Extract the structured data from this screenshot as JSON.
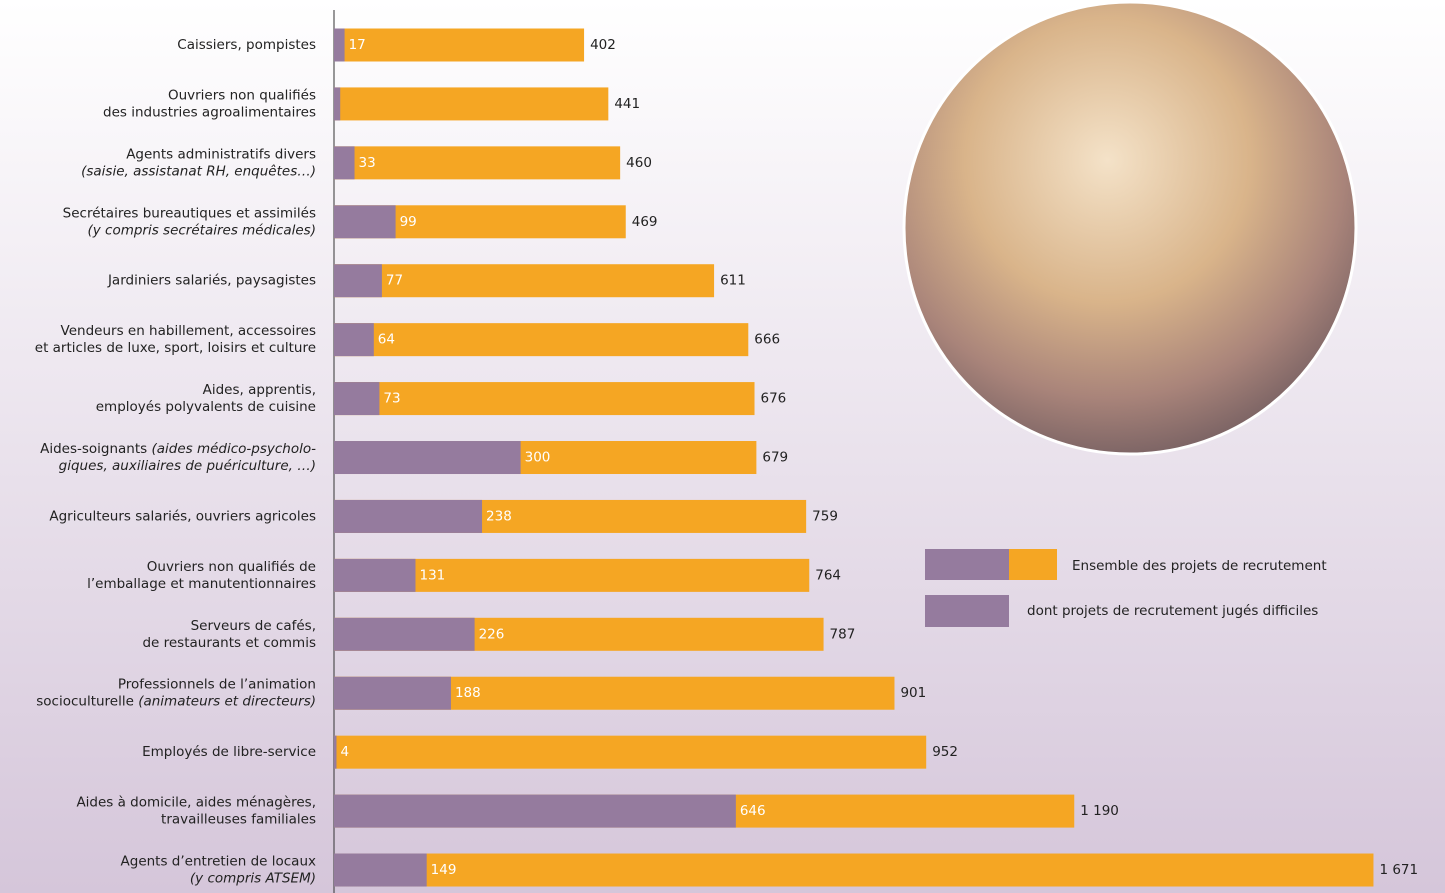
{
  "chart_data": {
    "type": "overlap-bar",
    "categories": [
      [
        [
          "Caissiers, pompistes"
        ]
      ],
      [
        [
          "Ouvriers non qualifiés"
        ],
        [
          "des industries agroalimentaires"
        ]
      ],
      [
        [
          "Agents administratifs divers"
        ],
        [
          "(saisie, assistanat RH, enquêtes…)"
        ]
      ],
      [
        [
          "Secrétaires bureautiques et assimilés"
        ],
        [
          "(y compris secrétaires médicales)"
        ]
      ],
      [
        [
          "Jardiniers salariés, paysagistes"
        ]
      ],
      [
        [
          "Vendeurs en habillement, accessoires"
        ],
        [
          "et articles de luxe, sport, loisirs et culture"
        ]
      ],
      [
        [
          "Aides, apprentis,"
        ],
        [
          "employés polyvalents de cuisine"
        ]
      ],
      [
        [
          "Aides-soignants ",
          "(aides médico-psycholo-"
        ],
        [
          "giques, auxiliaires de puériculture, …)"
        ]
      ],
      [
        [
          "Agriculteurs salariés, ouvriers agricoles"
        ]
      ],
      [
        [
          "Ouvriers non qualifiés de"
        ],
        [
          "l’emballage et manutentionnaires"
        ]
      ],
      [
        [
          "Serveurs de cafés,"
        ],
        [
          "de restaurants et commis"
        ]
      ],
      [
        [
          "Professionnels de l’animation"
        ],
        [
          "socioculturelle ",
          "(animateurs et directeurs)"
        ]
      ],
      [
        [
          "Employés de libre-service"
        ]
      ],
      [
        [
          "Aides à domicile, aides ménagères,"
        ],
        [
          "travailleuses familiales"
        ]
      ],
      [
        [
          "Agents d’entretien de locaux"
        ],
        [
          "(y compris ATSEM)"
        ]
      ]
    ],
    "series": [
      {
        "name": "Ensemble des projets de recrutement",
        "color": "#f5a623",
        "values": [
          402,
          441,
          460,
          469,
          611,
          666,
          676,
          679,
          759,
          764,
          787,
          901,
          952,
          1190,
          1671
        ],
        "value_labels": [
          "402",
          "441",
          "460",
          "469",
          "611",
          "666",
          "676",
          "679",
          "759",
          "764",
          "787",
          "901",
          "952",
          "1 190",
          "1 671"
        ]
      },
      {
        "name": "dont projets de recrutement jugés difficiles",
        "color": "#957b9e",
        "values": [
          17,
          10,
          33,
          99,
          77,
          64,
          73,
          300,
          238,
          131,
          226,
          188,
          4,
          646,
          149
        ],
        "value_labels": [
          "17",
          null,
          "33",
          "99",
          "77",
          "64",
          "73",
          "300",
          "238",
          "131",
          "226",
          "188",
          "4",
          "646",
          "149"
        ]
      }
    ],
    "xlim": [
      0,
      1786
    ]
  }
}
